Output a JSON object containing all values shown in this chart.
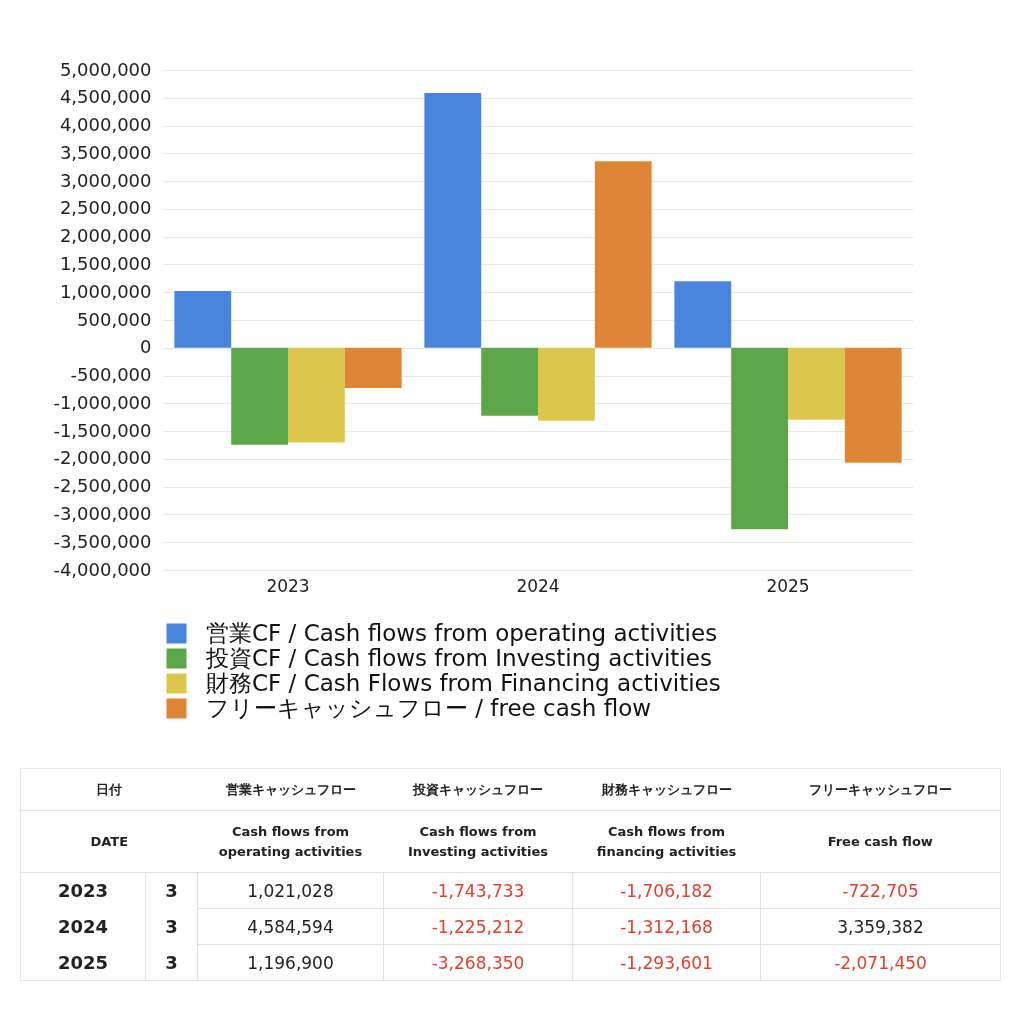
{
  "chart_data": {
    "type": "bar",
    "categories": [
      "2023",
      "2024",
      "2025"
    ],
    "series": [
      {
        "name": "営業CF / Cash flows from operating activities",
        "color": "#4a84dc",
        "values": [
          1021028,
          4584594,
          1196900
        ]
      },
      {
        "name": "投資CF / Cash flows from Investing activities",
        "color": "#5ea64a",
        "values": [
          -1743733,
          -1225212,
          -3268350
        ]
      },
      {
        "name": "財務CF / Cash Flows from Financing activities",
        "color": "#dcc74c",
        "values": [
          -1706182,
          -1312168,
          -1293601
        ]
      },
      {
        "name": "フリーキャッシュフロー / free cash flow",
        "color": "#dc8636",
        "values": [
          -722705,
          3359382,
          -2071450
        ]
      }
    ],
    "ylim": [
      -4000000,
      5000000
    ],
    "yticks": [
      {
        "value": -4000000,
        "label": "-4,000,000"
      },
      {
        "value": -3500000,
        "label": "-3,500,000"
      },
      {
        "value": -3000000,
        "label": "-3,000,000"
      },
      {
        "value": -2500000,
        "label": "-2,500,000"
      },
      {
        "value": -2000000,
        "label": "-2,000,000"
      },
      {
        "value": -1500000,
        "label": "-1,500,000"
      },
      {
        "value": -1000000,
        "label": "-1,000,000"
      },
      {
        "value": -500000,
        "label": "-500,000"
      },
      0,
      {
        "value": 500000,
        "label": "500,000"
      },
      {
        "value": 1000000,
        "label": "1,000,000"
      },
      {
        "value": 1500000,
        "label": "1,500,000"
      },
      {
        "value": 2000000,
        "label": "2,000,000"
      },
      {
        "value": 2500000,
        "label": "2,500,000"
      },
      {
        "value": 3000000,
        "label": "3,000,000"
      },
      {
        "value": 3500000,
        "label": "3,500,000"
      },
      {
        "value": 4000000,
        "label": "4,000,000"
      },
      {
        "value": 4500000,
        "label": "4,500,000"
      },
      {
        "value": 5000000,
        "label": "5,000,000"
      }
    ],
    "grid": "y",
    "legend": "bottom",
    "annotations": [
      "日付",
      "営業キャッシュフロー",
      "投資キャッシュフロー",
      "財務キャッシュフロー",
      "フリーキャッシュフロー",
      "DATE",
      "Cash flows from operating activities",
      "Cash flows from Investing activities",
      "Cash flows from financing activities",
      "Free cash flow",
      "3",
      "1,021,028",
      "-1,743,733",
      "-1,706,182",
      "-722,705",
      "3",
      "4,584,594",
      "-1,225,212",
      "-1,312,168",
      "3,359,382",
      "3",
      "1,196,900",
      "-3,268,350",
      "-1,293,601",
      "-2,071,450"
    ]
  }
}
